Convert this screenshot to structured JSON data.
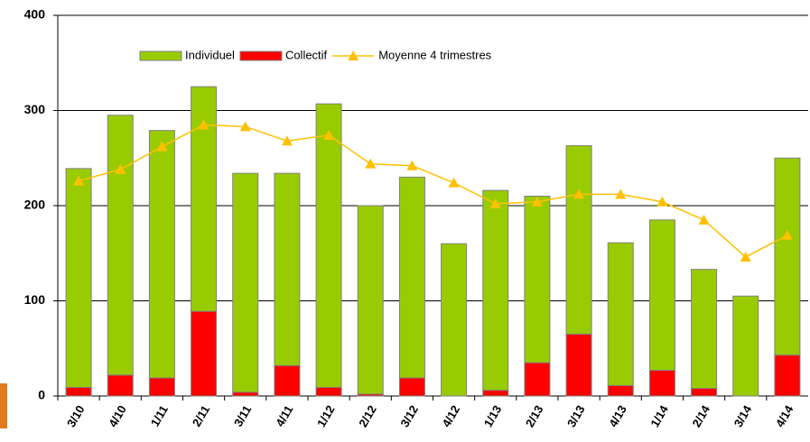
{
  "chart_data": {
    "type": "bar",
    "categories": [
      "3/10",
      "4/10",
      "1/11",
      "2/11",
      "3/11",
      "4/11",
      "1/12",
      "2/12",
      "3/12",
      "4/12",
      "1/13",
      "2/13",
      "3/13",
      "4/13",
      "1/14",
      "2/14",
      "3/14",
      "4/14"
    ],
    "series": [
      {
        "name": "Individuel",
        "color": "#99cc00",
        "values": [
          230,
          273,
          260,
          236,
          230,
          202,
          298,
          198,
          211,
          160,
          210,
          175,
          198,
          150,
          158,
          125,
          105,
          207
        ]
      },
      {
        "name": "Collectif",
        "color": "#ff0000",
        "values": [
          9,
          22,
          19,
          89,
          4,
          32,
          9,
          2,
          19,
          0,
          6,
          35,
          65,
          11,
          27,
          8,
          0,
          43
        ]
      },
      {
        "name": "Moyenne 4 trimestres",
        "color": "#ffc000",
        "type": "line",
        "values": [
          226,
          238,
          262,
          285,
          283,
          268,
          274,
          244,
          242,
          224,
          202,
          204,
          212,
          212,
          204,
          185,
          146,
          169
        ]
      }
    ],
    "stacked": true,
    "ylim": [
      0,
      400
    ],
    "yticks": [
      0,
      100,
      200,
      300,
      400
    ],
    "grid": true,
    "legend": "top"
  }
}
